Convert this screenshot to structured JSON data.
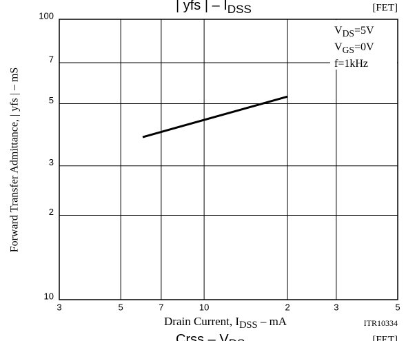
{
  "chart_data": {
    "type": "line",
    "title": {
      "text": "| yfs | – I",
      "sub": "DSS"
    },
    "tag": "[FET]",
    "x_label": {
      "text": "Drain Current, I",
      "sub": "DSS",
      "tail": " – mA"
    },
    "y_label": "Forward Transfer Admittance, | yfs | – mS",
    "code": "ITR10334",
    "next_title": {
      "text": "Crss – V",
      "sub": "DS"
    },
    "next_tag": "[FET]",
    "conditions": [
      {
        "text": "V",
        "sub": "DS",
        "tail": "=5V"
      },
      {
        "text": "V",
        "sub": "GS",
        "tail": "=0V"
      },
      {
        "text": "f=1kHz"
      }
    ],
    "log_x": true,
    "log_y": true,
    "grid": true,
    "xlim": [
      3,
      50
    ],
    "ylim": [
      10,
      100
    ],
    "xticks": [
      3,
      5,
      7,
      10,
      {
        "value": 20,
        "label": "2"
      },
      {
        "value": 30,
        "label": "3"
      },
      {
        "value": 50,
        "label": "5"
      }
    ],
    "yticks": [
      10,
      {
        "value": 20,
        "label": "2"
      },
      {
        "value": 30,
        "label": "3"
      },
      {
        "value": 50,
        "label": "5"
      },
      {
        "value": 70,
        "label": "7"
      },
      100
    ],
    "series": [
      {
        "color": "#000000",
        "x": [
          6,
          20
        ],
        "values": [
          38,
          53
        ]
      }
    ]
  }
}
